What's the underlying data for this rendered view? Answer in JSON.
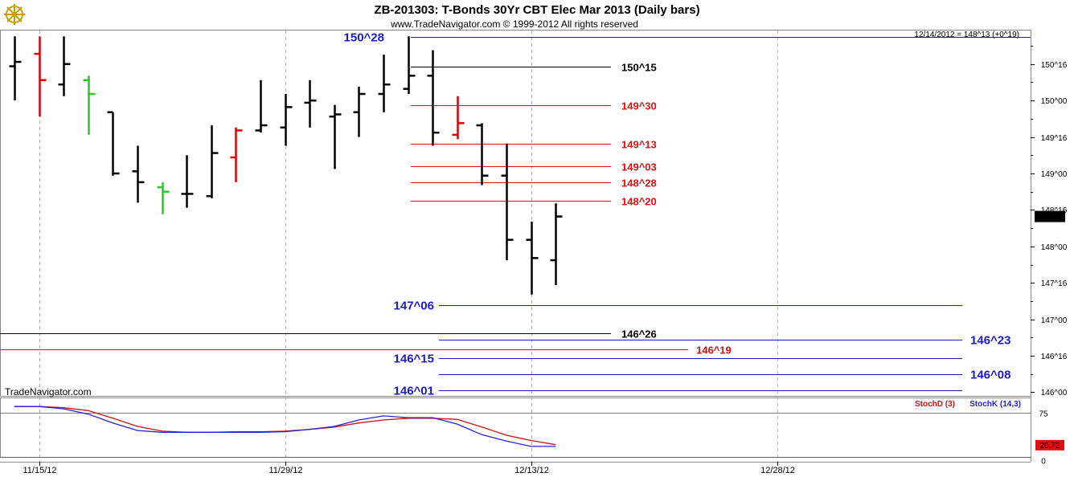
{
  "header": {
    "title": "ZB-201303:  T-Bonds 30Yr CBT Elec Mar 2013  (Daily bars)",
    "copyright": "www.TradeNavigator.com © 1999-2012 All rights reserved",
    "last_bar_info": "12/14/2012 = 148^13 (+0^19)",
    "watermark": "TradeNavigator.com",
    "logo_icon": "ship-wheel-logo-icon"
  },
  "colors": {
    "bar": "#000000",
    "bar_down": "#e00000",
    "bar_up": "#22cc22",
    "blue_level": "#1a1acc",
    "red_level": "#dd1111",
    "black_level": "#000000",
    "grid": "#b4b4b4",
    "stoch_k": "#2222dd",
    "stoch_d": "#cc1111",
    "price_badge_bg": "#000000",
    "stoch_badge_bg": "#dd1111"
  },
  "chart_data": [
    {
      "type": "ohlc",
      "x_ticks": [
        "11/15/12",
        "11/29/12",
        "12/13/12",
        "12/28/12"
      ],
      "y_ticks": [
        "150^16",
        "150^00",
        "149^16",
        "149^00",
        "148^16",
        "148^00",
        "147^16",
        "147^00",
        "146^16",
        "146^00"
      ],
      "last_price_label": "148^13",
      "ylim": [
        145.95,
        150.96
      ],
      "bars": [
        {
          "o": 150.47,
          "h": 150.88,
          "l": 150.0,
          "c": 150.53,
          "color": "bar"
        },
        {
          "o": 150.64,
          "h": 150.88,
          "l": 149.78,
          "c": 150.28,
          "color": "bar_down"
        },
        {
          "o": 150.22,
          "h": 150.88,
          "l": 150.06,
          "c": 150.5,
          "color": "bar"
        },
        {
          "o": 150.28,
          "h": 150.34,
          "l": 149.53,
          "c": 150.09,
          "color": "bar_up"
        },
        {
          "o": 149.84,
          "h": 149.84,
          "l": 148.97,
          "c": 149.0,
          "color": "bar"
        },
        {
          "o": 149.03,
          "h": 149.38,
          "l": 148.6,
          "c": 148.88,
          "color": "bar"
        },
        {
          "o": 148.81,
          "h": 148.88,
          "l": 148.44,
          "c": 148.75,
          "color": "bar_up"
        },
        {
          "o": 148.72,
          "h": 149.25,
          "l": 148.53,
          "c": 148.72,
          "color": "bar"
        },
        {
          "o": 148.69,
          "h": 149.66,
          "l": 148.66,
          "c": 149.28,
          "color": "bar"
        },
        {
          "o": 149.22,
          "h": 149.63,
          "l": 148.88,
          "c": 149.59,
          "color": "bar_down"
        },
        {
          "o": 149.59,
          "h": 150.28,
          "l": 149.56,
          "c": 149.66,
          "color": "bar"
        },
        {
          "o": 149.63,
          "h": 150.09,
          "l": 149.38,
          "c": 149.91,
          "color": "bar"
        },
        {
          "o": 149.97,
          "h": 150.28,
          "l": 149.63,
          "c": 150.0,
          "color": "bar"
        },
        {
          "o": 149.78,
          "h": 149.94,
          "l": 149.06,
          "c": 149.81,
          "color": "bar"
        },
        {
          "o": 149.84,
          "h": 150.19,
          "l": 149.5,
          "c": 150.09,
          "color": "bar"
        },
        {
          "o": 150.09,
          "h": 150.63,
          "l": 149.84,
          "c": 150.22,
          "color": "bar"
        },
        {
          "o": 150.16,
          "h": 150.88,
          "l": 150.09,
          "c": 150.34,
          "color": "bar"
        },
        {
          "o": 150.34,
          "h": 150.69,
          "l": 149.38,
          "c": 149.56,
          "color": "bar"
        },
        {
          "o": 149.53,
          "h": 150.06,
          "l": 149.47,
          "c": 149.69,
          "color": "bar_down"
        },
        {
          "o": 149.66,
          "h": 149.69,
          "l": 148.84,
          "c": 148.97,
          "color": "bar"
        },
        {
          "o": 148.97,
          "h": 149.41,
          "l": 147.81,
          "c": 148.09,
          "color": "bar"
        },
        {
          "o": 148.09,
          "h": 148.34,
          "l": 147.34,
          "c": 147.84,
          "color": "bar"
        },
        {
          "o": 147.81,
          "h": 148.59,
          "l": 147.47,
          "c": 148.41,
          "color": "bar"
        }
      ],
      "levels": [
        {
          "label": "150^28",
          "value": 150.875,
          "color": "blue_level",
          "line": [
            511,
            1282
          ],
          "text_x": 478,
          "text_anchor": "end"
        },
        {
          "label": "150^15",
          "value": 150.469,
          "color": "black_level",
          "line": [
            511,
            760
          ],
          "text_x": 773,
          "text_anchor": "start"
        },
        {
          "label": "149^30",
          "value": 149.9375,
          "color": "red_level",
          "line": [
            511,
            760
          ],
          "text_x": 773,
          "text_anchor": "start"
        },
        {
          "label": "149^13",
          "value": 149.406,
          "color": "red_level",
          "line": [
            511,
            760
          ],
          "text_x": 773,
          "text_anchor": "start"
        },
        {
          "label": "149^03",
          "value": 149.094,
          "color": "red_level",
          "line": [
            511,
            760
          ],
          "text_x": 773,
          "text_anchor": "start"
        },
        {
          "label": "148^28",
          "value": 148.875,
          "color": "red_level",
          "line": [
            511,
            760
          ],
          "text_x": 773,
          "text_anchor": "start"
        },
        {
          "label": "148^20",
          "value": 148.625,
          "color": "red_level",
          "line": [
            511,
            760
          ],
          "text_x": 773,
          "text_anchor": "start"
        },
        {
          "label": "147^06",
          "value": 147.19,
          "color": "blue_level",
          "line": [
            546,
            1197
          ],
          "text_x": 540,
          "text_anchor": "end"
        },
        {
          "label": "146^26",
          "value": 146.81,
          "color": "black_level",
          "line": [
            0,
            760
          ],
          "text_x": 773,
          "text_anchor": "start"
        },
        {
          "label": "146^23",
          "value": 146.72,
          "color": "blue_level",
          "line": [
            546,
            1197
          ],
          "text_x": 1207,
          "text_anchor": "start"
        },
        {
          "label": "146^19",
          "value": 146.59,
          "color": "red_level",
          "line": [
            0,
            856
          ],
          "text_x": 866,
          "text_anchor": "start"
        },
        {
          "label": "146^15",
          "value": 146.47,
          "color": "blue_level",
          "line": [
            546,
            1197
          ],
          "text_x": 540,
          "text_anchor": "end"
        },
        {
          "label": "146^08",
          "value": 146.25,
          "color": "blue_level",
          "line": [
            546,
            1197
          ],
          "text_x": 1207,
          "text_anchor": "start"
        },
        {
          "label": "146^01",
          "value": 146.03,
          "color": "blue_level",
          "line": [
            546,
            1197
          ],
          "text_x": 540,
          "text_anchor": "end"
        }
      ]
    },
    {
      "type": "line",
      "series": [
        {
          "name": "StochD (3)",
          "color": "stoch_d",
          "values": [
            86,
            86,
            84,
            79,
            66,
            52,
            44,
            42,
            42,
            43,
            43,
            44,
            47,
            51,
            58,
            63,
            66,
            66,
            64,
            51,
            37,
            28,
            21
          ]
        },
        {
          "name": "StochK (14,3)",
          "color": "stoch_k",
          "values": [
            86,
            86,
            82,
            73,
            58,
            45,
            42,
            42,
            42,
            42,
            42,
            43,
            47,
            52,
            63,
            70,
            67,
            67,
            56,
            38,
            27,
            18,
            18
          ]
        }
      ],
      "y_ticks": [
        "75",
        "0"
      ],
      "ylim": [
        0,
        100
      ],
      "last_value_label": "20.72"
    }
  ]
}
